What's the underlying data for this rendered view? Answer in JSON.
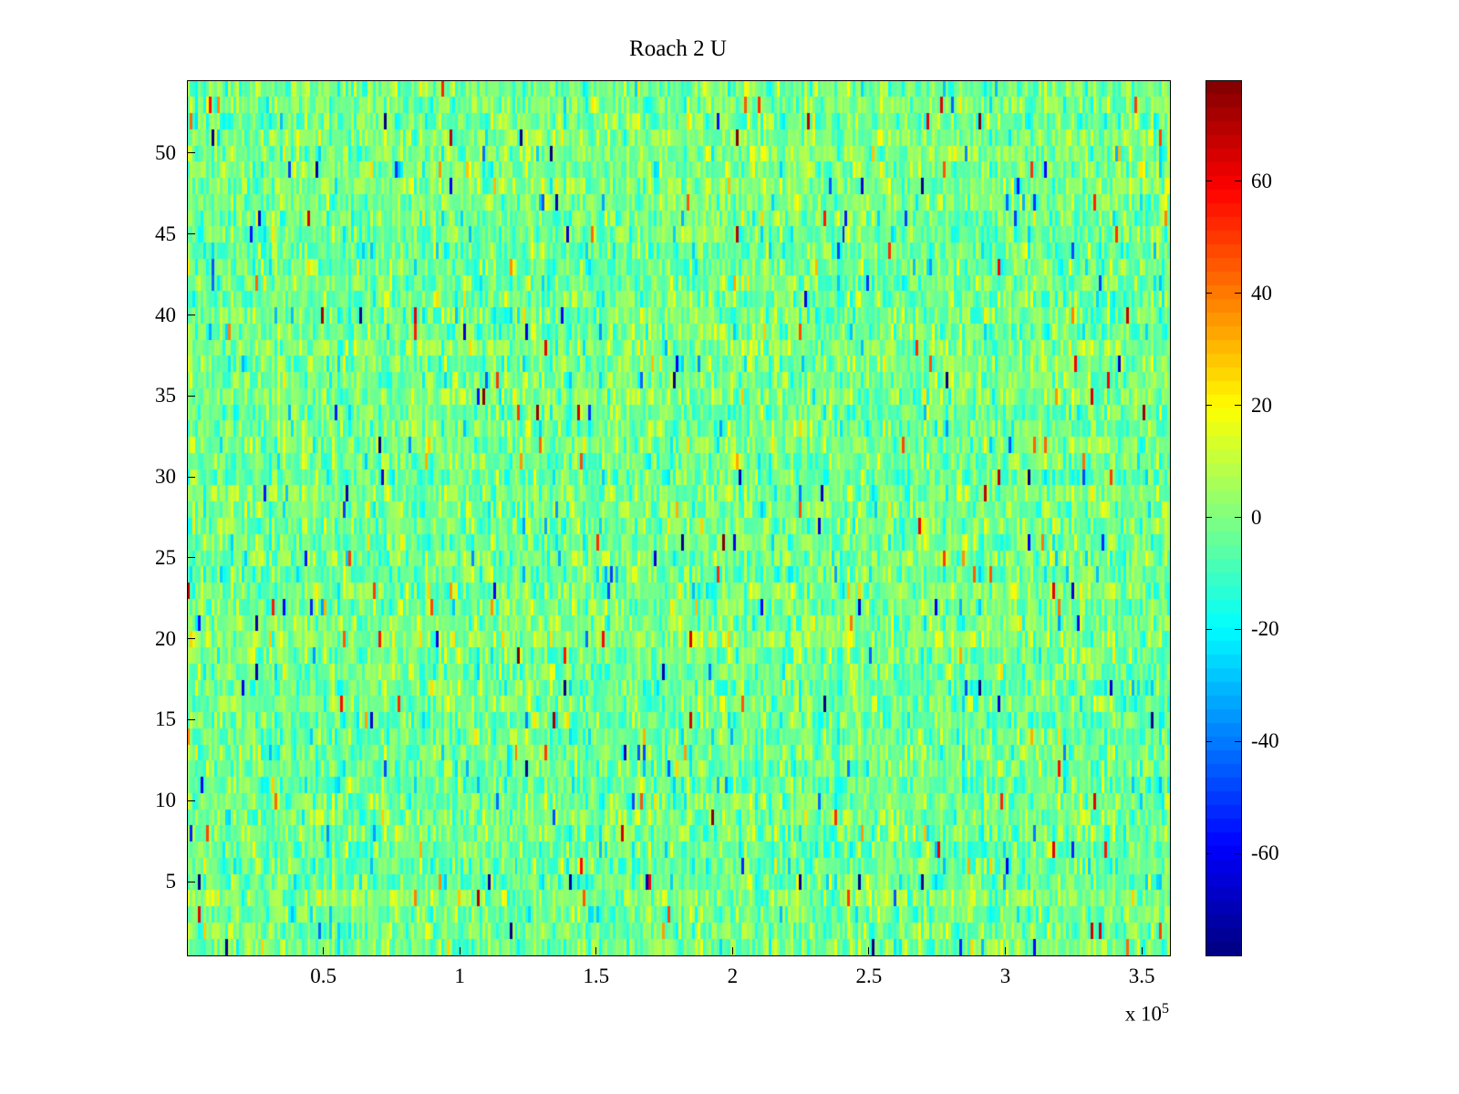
{
  "chart_data": {
    "type": "heatmap",
    "title": "Roach 2 U",
    "xlabel": "",
    "ylabel": "",
    "x_range": [
      0,
      360000
    ],
    "x_ticks": [
      50000,
      100000,
      150000,
      200000,
      250000,
      300000,
      350000
    ],
    "x_tick_labels": [
      "0.5",
      "1",
      "1.5",
      "2",
      "2.5",
      "3",
      "3.5"
    ],
    "x_scale_base": "x 10",
    "x_scale_exp": "5",
    "y_range": [
      0.5,
      54.5
    ],
    "y_ticks": [
      5,
      10,
      15,
      20,
      25,
      30,
      35,
      40,
      45,
      50
    ],
    "y_tick_labels": [
      "5",
      "10",
      "15",
      "20",
      "25",
      "30",
      "35",
      "40",
      "45",
      "50"
    ],
    "rows": 54,
    "cols": 360,
    "grid": false,
    "legend": "none",
    "colormap": "jet",
    "colormap_levels": 64,
    "clim": [
      -78,
      78
    ],
    "colorbar_ticks": [
      60,
      40,
      20,
      0,
      -20,
      -40,
      -60
    ],
    "colorbar_tick_labels": [
      "60",
      "40",
      "20",
      "0",
      "-20",
      "-40",
      "-60"
    ],
    "noise": {
      "mean": -2,
      "std": 9,
      "row_offset_std": 1.5,
      "col_offset_std": 1.5,
      "outlier_fraction": 0.015,
      "outlier_min": 28,
      "outlier_extra": 48,
      "seed": 987654321
    }
  }
}
